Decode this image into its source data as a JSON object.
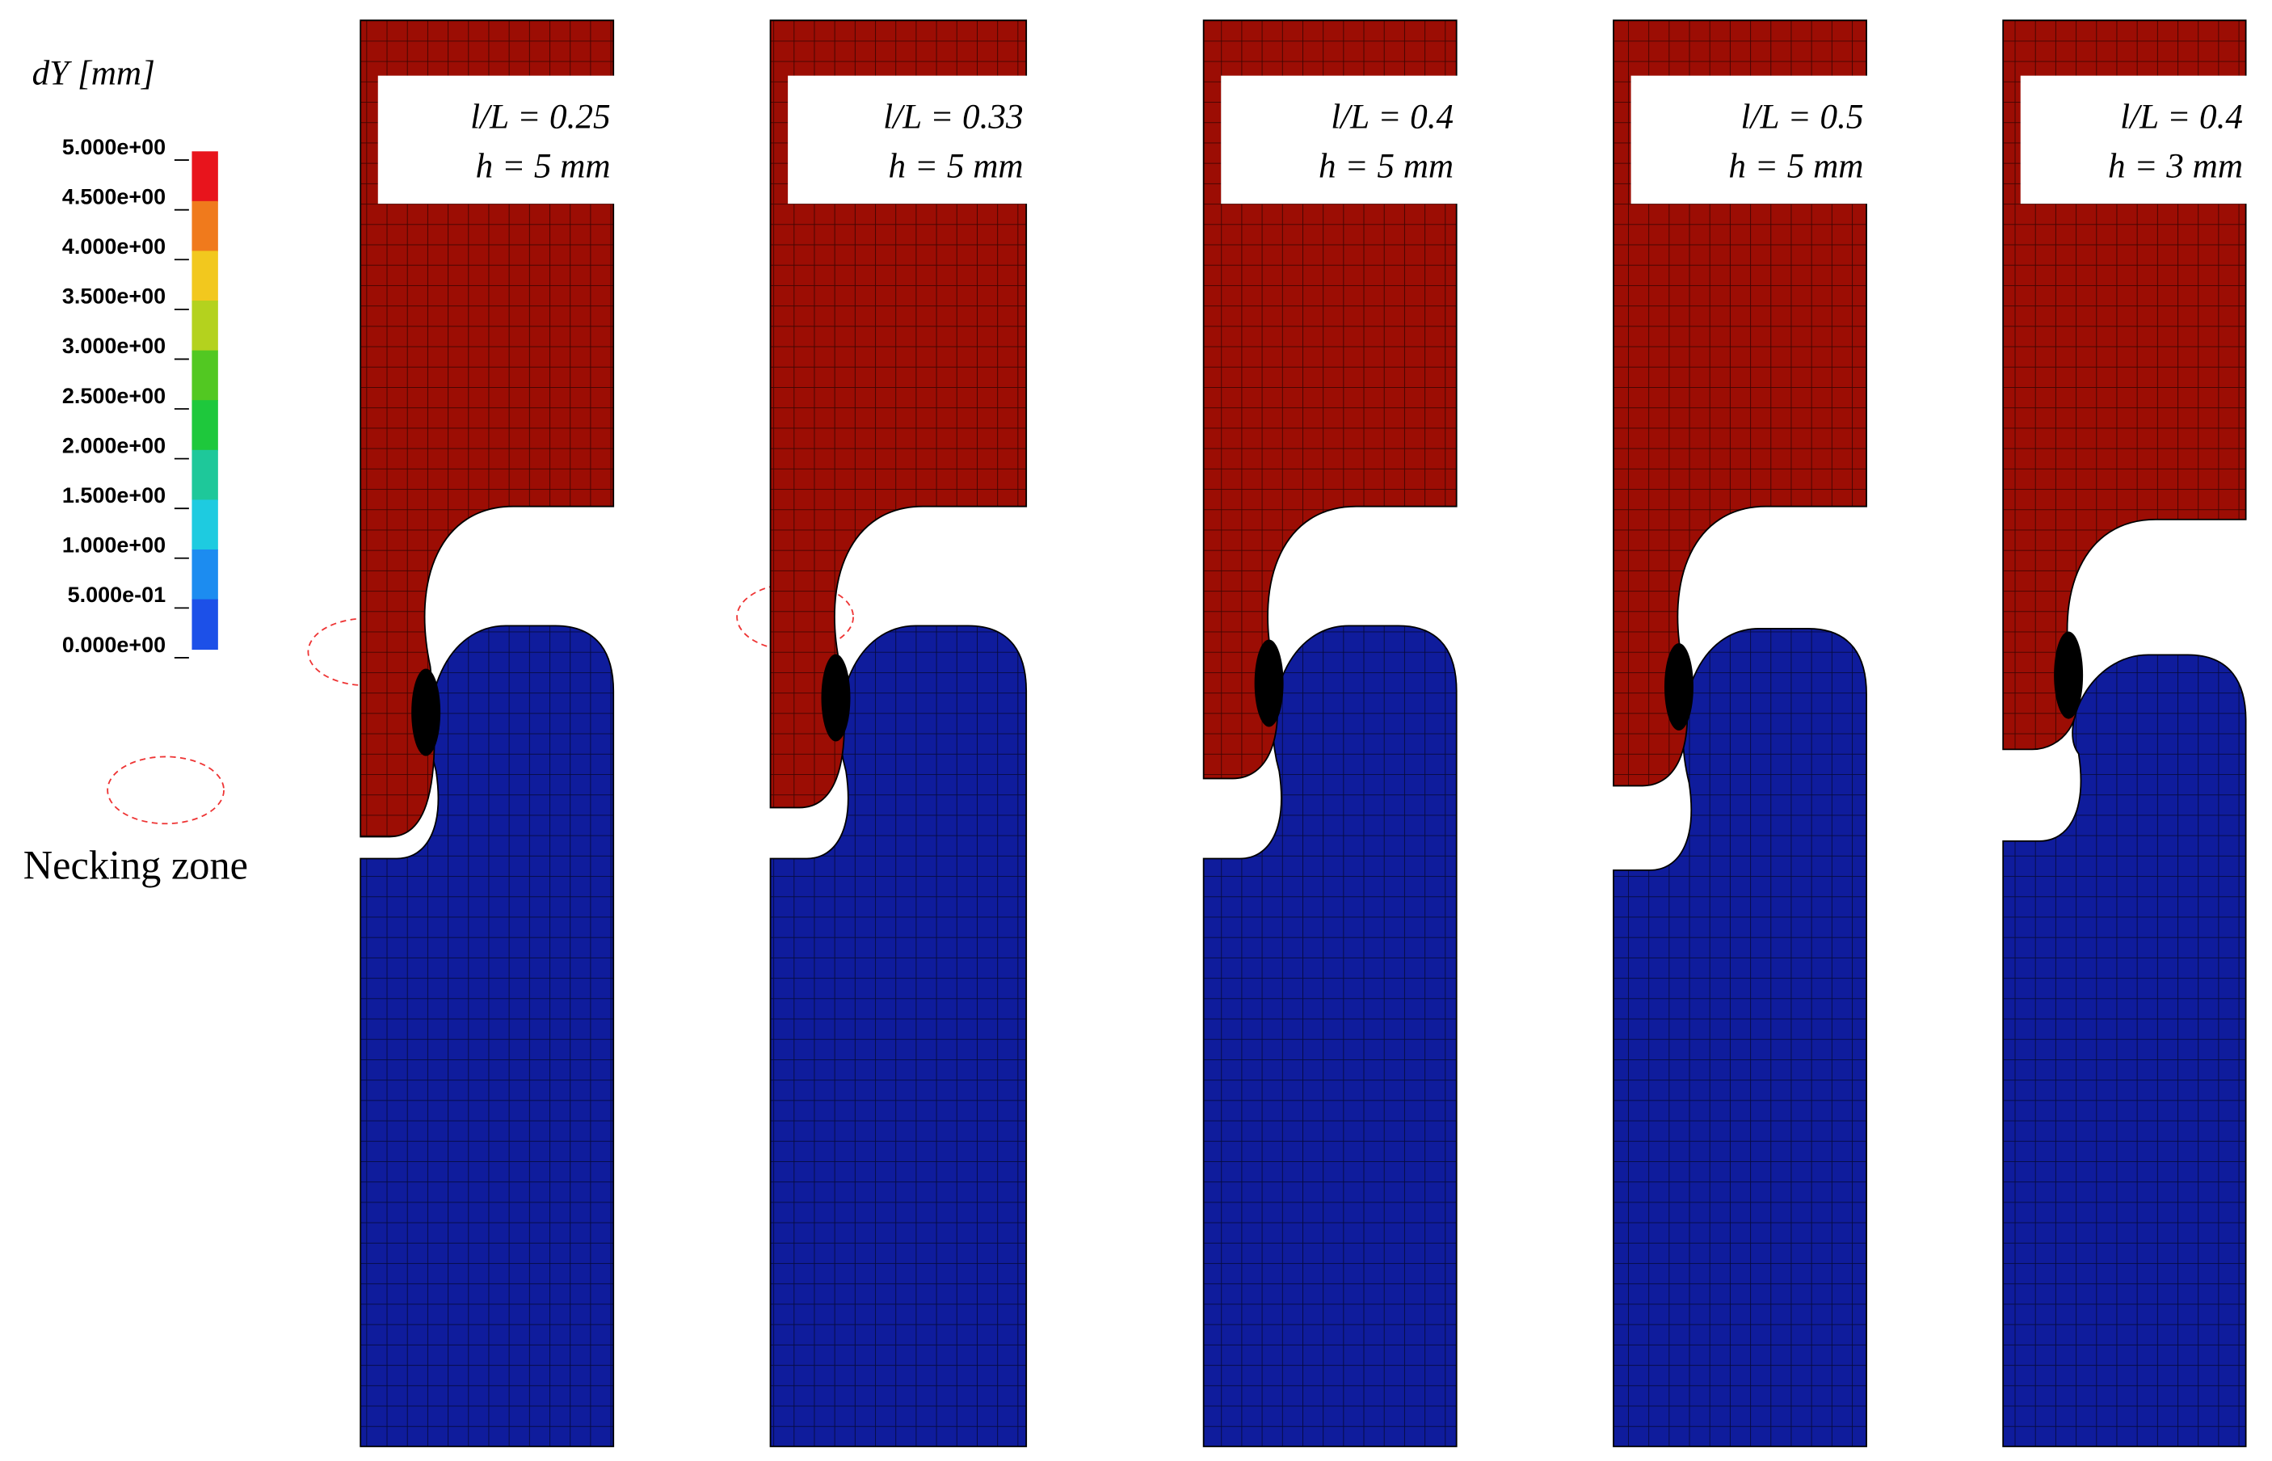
{
  "legend": {
    "title": "dY [mm]",
    "ticks": [
      "5.000e+00",
      "4.500e+00",
      "4.000e+00",
      "3.500e+00",
      "3.000e+00",
      "2.500e+00",
      "2.000e+00",
      "1.500e+00",
      "1.000e+00",
      "5.000e-01",
      "0.000e+00"
    ],
    "colors": [
      "#e8141c",
      "#f07a1c",
      "#f2c81e",
      "#b4d21e",
      "#52c822",
      "#1ec83c",
      "#1ec89a",
      "#1ecbe0",
      "#1c8cf0",
      "#1c50e8"
    ]
  },
  "annotation": "Necking zone",
  "panels": [
    {
      "ratio": "l/L  = 0.25",
      "height": "h = 5 mm"
    },
    {
      "ratio": "l/L = 0.33",
      "height": "h = 5 mm"
    },
    {
      "ratio": "l/L = 0.4",
      "height": "h = 5 mm"
    },
    {
      "ratio": "l/L = 0.5",
      "height": "h = 5 mm"
    },
    {
      "ratio": "l/L = 0.4",
      "height": "h = 3 mm"
    }
  ]
}
